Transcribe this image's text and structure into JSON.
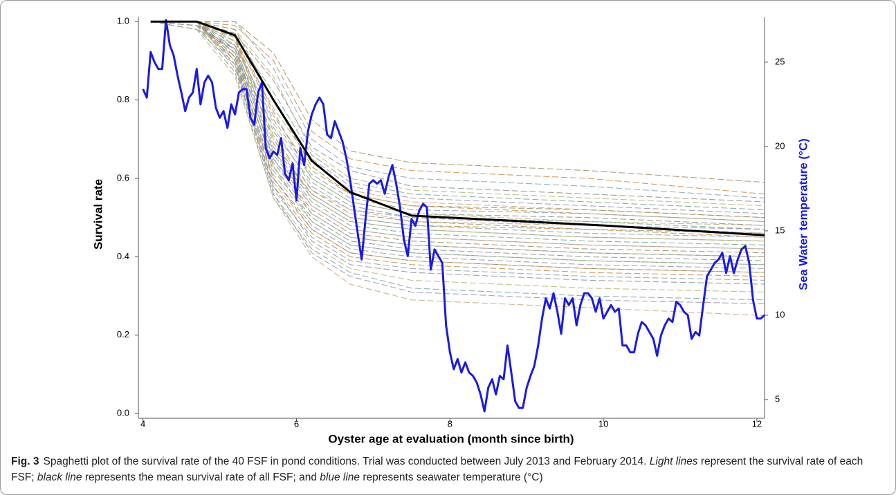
{
  "chart_data": {
    "type": "line",
    "xlabel": "Oyster age at evaluation (month since birth)",
    "ylabel": "Survival rate",
    "y2label": "Sea Water temperature (°C)",
    "xlim": [
      3.94,
      12.1
    ],
    "xticks": [
      4,
      6,
      8,
      10,
      12
    ],
    "ylim": [
      -0.012,
      1.011
    ],
    "yticks": [
      {
        "value": 0,
        "label": "0.0"
      },
      0.2,
      0.4,
      0.6,
      0.8,
      {
        "value": 1,
        "label": "1.0"
      }
    ],
    "y2lim": [
      3.89,
      27.66
    ],
    "y2ticks": [
      5,
      10,
      15,
      20,
      25
    ],
    "x": [
      4.1,
      4.7,
      5.2,
      5.7,
      6.2,
      6.7,
      7.5,
      9.8,
      12.1
    ],
    "series": [
      {
        "color": "#9b8f5a",
        "values": [
          1,
          1,
          1,
          0.92,
          0.75,
          0.67,
          0.64,
          0.62,
          0.59
        ]
      },
      {
        "color": "#d08b3a",
        "values": [
          1,
          1,
          0.99,
          0.9,
          0.72,
          0.65,
          0.62,
          0.6,
          0.56
        ]
      },
      {
        "color": "#7fa3b8",
        "values": [
          1,
          1,
          1,
          0.88,
          0.7,
          0.63,
          0.6,
          0.58,
          0.55
        ]
      },
      {
        "color": "#8e8e8e",
        "values": [
          1,
          0.99,
          0.97,
          0.85,
          0.68,
          0.62,
          0.58,
          0.56,
          0.54
        ]
      },
      {
        "color": "#b5b86a",
        "values": [
          1,
          1,
          0.98,
          0.86,
          0.67,
          0.6,
          0.57,
          0.55,
          0.53
        ]
      },
      {
        "color": "#6fa89a",
        "values": [
          1,
          1,
          0.96,
          0.82,
          0.66,
          0.59,
          0.56,
          0.54,
          0.52
        ]
      },
      {
        "color": "#a08cb4",
        "values": [
          1,
          1,
          0.97,
          0.8,
          0.65,
          0.58,
          0.55,
          0.53,
          0.51
        ]
      },
      {
        "color": "#c9a77a",
        "values": [
          1,
          0.99,
          0.95,
          0.78,
          0.64,
          0.57,
          0.54,
          0.52,
          0.5
        ]
      },
      {
        "color": "#9b8f5a",
        "values": [
          1,
          1,
          0.98,
          0.8,
          0.63,
          0.56,
          0.53,
          0.52,
          0.5
        ]
      },
      {
        "color": "#d08b3a",
        "values": [
          1,
          1,
          0.96,
          0.76,
          0.62,
          0.56,
          0.53,
          0.51,
          0.49
        ]
      },
      {
        "color": "#7fa3b8",
        "values": [
          1,
          0.98,
          0.94,
          0.75,
          0.61,
          0.55,
          0.52,
          0.51,
          0.49
        ]
      },
      {
        "color": "#8e8e8e",
        "values": [
          1,
          1,
          0.97,
          0.77,
          0.6,
          0.54,
          0.51,
          0.5,
          0.48
        ]
      },
      {
        "color": "#b5b86a",
        "values": [
          1,
          1,
          0.95,
          0.74,
          0.6,
          0.54,
          0.51,
          0.49,
          0.48
        ]
      },
      {
        "color": "#6fa89a",
        "values": [
          1,
          0.99,
          0.96,
          0.72,
          0.59,
          0.53,
          0.5,
          0.49,
          0.47
        ]
      },
      {
        "color": "#a08cb4",
        "values": [
          1,
          1,
          0.94,
          0.73,
          0.58,
          0.52,
          0.5,
          0.48,
          0.47
        ]
      },
      {
        "color": "#c9a77a",
        "values": [
          1,
          1,
          0.95,
          0.7,
          0.57,
          0.52,
          0.49,
          0.48,
          0.46
        ]
      },
      {
        "color": "#9b8f5a",
        "values": [
          1,
          0.98,
          0.93,
          0.71,
          0.57,
          0.51,
          0.49,
          0.47,
          0.46
        ]
      },
      {
        "color": "#d08b3a",
        "values": [
          1,
          1,
          0.96,
          0.69,
          0.56,
          0.5,
          0.48,
          0.47,
          0.45
        ]
      },
      {
        "color": "#7fa3b8",
        "values": [
          1,
          1,
          0.94,
          0.68,
          0.56,
          0.5,
          0.48,
          0.46,
          0.45
        ]
      },
      {
        "color": "#8e8e8e",
        "values": [
          1,
          0.99,
          0.93,
          0.67,
          0.55,
          0.49,
          0.47,
          0.45,
          0.44
        ]
      },
      {
        "color": "#b5b86a",
        "values": [
          1,
          1,
          0.95,
          0.7,
          0.55,
          0.49,
          0.47,
          0.45,
          0.44
        ]
      },
      {
        "color": "#6fa89a",
        "values": [
          1,
          1,
          0.92,
          0.66,
          0.54,
          0.48,
          0.46,
          0.44,
          0.43
        ]
      },
      {
        "color": "#a08cb4",
        "values": [
          1,
          0.98,
          0.93,
          0.65,
          0.53,
          0.47,
          0.45,
          0.43,
          0.42
        ]
      },
      {
        "color": "#c9a77a",
        "values": [
          1,
          1,
          0.94,
          0.67,
          0.53,
          0.47,
          0.45,
          0.43,
          0.42
        ]
      },
      {
        "color": "#9b8f5a",
        "values": [
          1,
          1,
          0.91,
          0.64,
          0.52,
          0.46,
          0.44,
          0.42,
          0.41
        ]
      },
      {
        "color": "#d08b3a",
        "values": [
          1,
          0.99,
          0.92,
          0.63,
          0.51,
          0.45,
          0.43,
          0.41,
          0.4
        ]
      },
      {
        "color": "#7fa3b8",
        "values": [
          1,
          1,
          0.93,
          0.65,
          0.51,
          0.45,
          0.43,
          0.41,
          0.4
        ]
      },
      {
        "color": "#8e8e8e",
        "values": [
          1,
          1,
          0.9,
          0.62,
          0.5,
          0.44,
          0.42,
          0.4,
          0.39
        ]
      },
      {
        "color": "#b5b86a",
        "values": [
          1,
          0.98,
          0.91,
          0.61,
          0.49,
          0.43,
          0.41,
          0.39,
          0.38
        ]
      },
      {
        "color": "#6fa89a",
        "values": [
          1,
          1,
          0.92,
          0.63,
          0.49,
          0.43,
          0.41,
          0.39,
          0.38
        ]
      },
      {
        "color": "#a08cb4",
        "values": [
          1,
          1,
          0.89,
          0.6,
          0.48,
          0.42,
          0.4,
          0.38,
          0.37
        ]
      },
      {
        "color": "#c9a77a",
        "values": [
          1,
          0.99,
          0.9,
          0.59,
          0.47,
          0.41,
          0.39,
          0.37,
          0.36
        ]
      },
      {
        "color": "#9b8f5a",
        "values": [
          1,
          1,
          0.91,
          0.6,
          0.47,
          0.41,
          0.39,
          0.37,
          0.36
        ]
      },
      {
        "color": "#d08b3a",
        "values": [
          1,
          1,
          0.88,
          0.58,
          0.46,
          0.4,
          0.38,
          0.36,
          0.35
        ]
      },
      {
        "color": "#7fa3b8",
        "values": [
          1,
          0.98,
          0.89,
          0.57,
          0.45,
          0.39,
          0.37,
          0.35,
          0.34
        ]
      },
      {
        "color": "#8e8e8e",
        "values": [
          1,
          1,
          0.9,
          0.58,
          0.44,
          0.38,
          0.36,
          0.34,
          0.33
        ]
      },
      {
        "color": "#b5b86a",
        "values": [
          1,
          1,
          0.88,
          0.56,
          0.43,
          0.37,
          0.34,
          0.32,
          0.31
        ]
      },
      {
        "color": "#6fa89a",
        "values": [
          1,
          0.99,
          0.87,
          0.55,
          0.42,
          0.36,
          0.32,
          0.3,
          0.29
        ]
      },
      {
        "color": "#a08cb4",
        "values": [
          1,
          1,
          0.89,
          0.56,
          0.41,
          0.35,
          0.31,
          0.29,
          0.28
        ]
      },
      {
        "color": "#c9a77a",
        "values": [
          1,
          0.98,
          0.86,
          0.55,
          0.4,
          0.33,
          0.29,
          0.27,
          0.25
        ]
      },
      {
        "color": "#1a1ae6",
        "axis": "y2",
        "x": [
          4,
          4.05,
          4.1,
          4.15,
          4.2,
          4.25,
          4.3,
          4.35,
          4.4,
          4.45,
          4.5,
          4.55,
          4.6,
          4.65,
          4.7,
          4.75,
          4.8,
          4.85,
          4.9,
          4.95,
          5,
          5.05,
          5.1,
          5.15,
          5.2,
          5.25,
          5.3,
          5.35,
          5.4,
          5.45,
          5.5,
          5.55,
          5.6,
          5.65,
          5.7,
          5.75,
          5.8,
          5.85,
          5.9,
          5.95,
          6,
          6.05,
          6.1,
          6.15,
          6.2,
          6.25,
          6.3,
          6.35,
          6.4,
          6.45,
          6.5,
          6.55,
          6.6,
          6.65,
          6.7,
          6.75,
          6.8,
          6.85,
          6.9,
          6.95,
          7,
          7.05,
          7.1,
          7.15,
          7.2,
          7.25,
          7.3,
          7.35,
          7.4,
          7.45,
          7.5,
          7.55,
          7.6,
          7.65,
          7.7,
          7.75,
          7.8,
          7.85,
          7.9,
          7.95,
          8,
          8.05,
          8.1,
          8.15,
          8.2,
          8.25,
          8.3,
          8.35,
          8.4,
          8.45,
          8.5,
          8.55,
          8.6,
          8.65,
          8.7,
          8.75,
          8.8,
          8.85,
          8.9,
          8.95,
          9,
          9.05,
          9.1,
          9.15,
          9.2,
          9.25,
          9.3,
          9.35,
          9.4,
          9.45,
          9.5,
          9.55,
          9.6,
          9.65,
          9.7,
          9.75,
          9.8,
          9.85,
          9.9,
          9.95,
          10,
          10.05,
          10.1,
          10.15,
          10.2,
          10.25,
          10.3,
          10.35,
          10.4,
          10.45,
          10.5,
          10.55,
          10.6,
          10.65,
          10.7,
          10.75,
          10.8,
          10.85,
          10.9,
          10.95,
          11,
          11.05,
          11.1,
          11.15,
          11.2,
          11.25,
          11.3,
          11.35,
          11.4,
          11.45,
          11.5,
          11.55,
          11.6,
          11.65,
          11.7,
          11.75,
          11.8,
          11.85,
          11.9,
          11.95,
          12,
          12.05,
          12.1
        ],
        "values": [
          23.4,
          22.9,
          25.6,
          25,
          24.6,
          24.6,
          27.5,
          26,
          25.4,
          24.2,
          23.2,
          22.1,
          22.9,
          23.2,
          24.6,
          22.5,
          23.8,
          24.2,
          23.8,
          22.3,
          21.7,
          22.1,
          21.1,
          22.5,
          21.9,
          23.2,
          23.4,
          23.4,
          21.7,
          21.3,
          23.2,
          23.8,
          19.9,
          19.3,
          19.7,
          19.5,
          20.5,
          18.4,
          18,
          19,
          16.8,
          19.9,
          18.9,
          20.9,
          21.9,
          22.5,
          22.9,
          22.5,
          20.7,
          20.5,
          21.5,
          20.9,
          20.3,
          19.3,
          18,
          16.4,
          14.8,
          13.3,
          15.7,
          17.8,
          18,
          17.8,
          18,
          17.2,
          18.2,
          18.9,
          17.8,
          16.4,
          14.5,
          13.5,
          15.7,
          15.3,
          16.2,
          16.6,
          16.4,
          12.7,
          13.9,
          13.5,
          13.1,
          9.4,
          7.8,
          6.8,
          7.4,
          6.6,
          7.2,
          6.6,
          6.4,
          6,
          5.3,
          4.3,
          5.7,
          6.2,
          5.3,
          6.4,
          6.2,
          8.2,
          6.6,
          4.9,
          4.5,
          4.5,
          5.7,
          6.4,
          7,
          8.2,
          9.8,
          11,
          10.4,
          11.3,
          10.2,
          8.9,
          11,
          10.6,
          11,
          9.4,
          10.6,
          11.3,
          11.3,
          11,
          10.2,
          11,
          9.8,
          10.2,
          10.6,
          10.2,
          10.4,
          8.2,
          8.2,
          7.8,
          7.8,
          8.9,
          9.6,
          9.4,
          9,
          8.6,
          7.6,
          8.8,
          9.4,
          9.8,
          9.6,
          10.8,
          10.6,
          10.2,
          10,
          8.6,
          9,
          8.8,
          10.6,
          12.3,
          12.7,
          13.1,
          13.3,
          13.7,
          12.5,
          13.5,
          12.5,
          13.3,
          13.9,
          14.1,
          13.1,
          10.9,
          9.8,
          9.8,
          10
        ]
      },
      {
        "color": "#000000",
        "x": [
          4.1,
          4.7,
          5.2,
          5.7,
          6.2,
          6.7,
          7.5,
          10,
          12.1
        ],
        "values": [
          1,
          1,
          0.965,
          0.8,
          0.645,
          0.565,
          0.505,
          0.48,
          0.455
        ]
      }
    ]
  },
  "caption": {
    "label": "Fig. 3",
    "parts": [
      "Spaghetti plot of the survival rate of the 40 FSF in pond conditions. Trial was conducted between July 2013 and February 2014. ",
      "Light lines",
      " represent the survival rate of each FSF; ",
      "black line",
      " represents the mean survival rate of all FSF; and ",
      "blue line",
      " represents seawater temperature (°C)"
    ]
  }
}
